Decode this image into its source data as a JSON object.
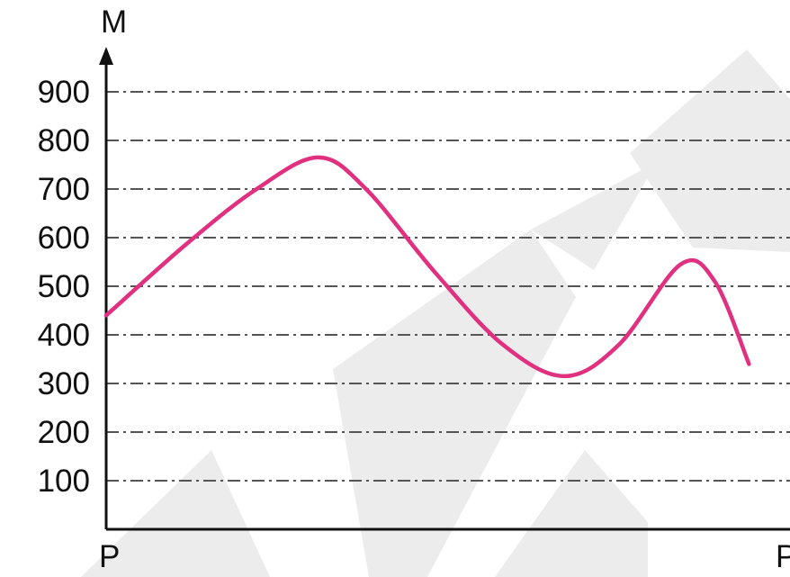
{
  "chart_data": {
    "type": "line",
    "y_axis_label": "M",
    "x_axis_start_label": "P",
    "x_axis_end_label": "P",
    "y_ticks": [
      100,
      200,
      300,
      400,
      500,
      600,
      700,
      800,
      900
    ],
    "ylim": [
      0,
      900
    ],
    "grid": "horizontal dash-dot",
    "series": [
      {
        "color": "#e0307f",
        "points": [
          {
            "x": 0.0,
            "y": 440
          },
          {
            "x": 0.12,
            "y": 590
          },
          {
            "x": 0.22,
            "y": 700
          },
          {
            "x": 0.31,
            "y": 765
          },
          {
            "x": 0.38,
            "y": 700
          },
          {
            "x": 0.48,
            "y": 530
          },
          {
            "x": 0.58,
            "y": 380
          },
          {
            "x": 0.67,
            "y": 315
          },
          {
            "x": 0.75,
            "y": 380
          },
          {
            "x": 0.84,
            "y": 545
          },
          {
            "x": 0.89,
            "y": 510
          },
          {
            "x": 0.94,
            "y": 340
          }
        ]
      }
    ],
    "watermark_shape": "large light-gray diagonal letters in background"
  }
}
